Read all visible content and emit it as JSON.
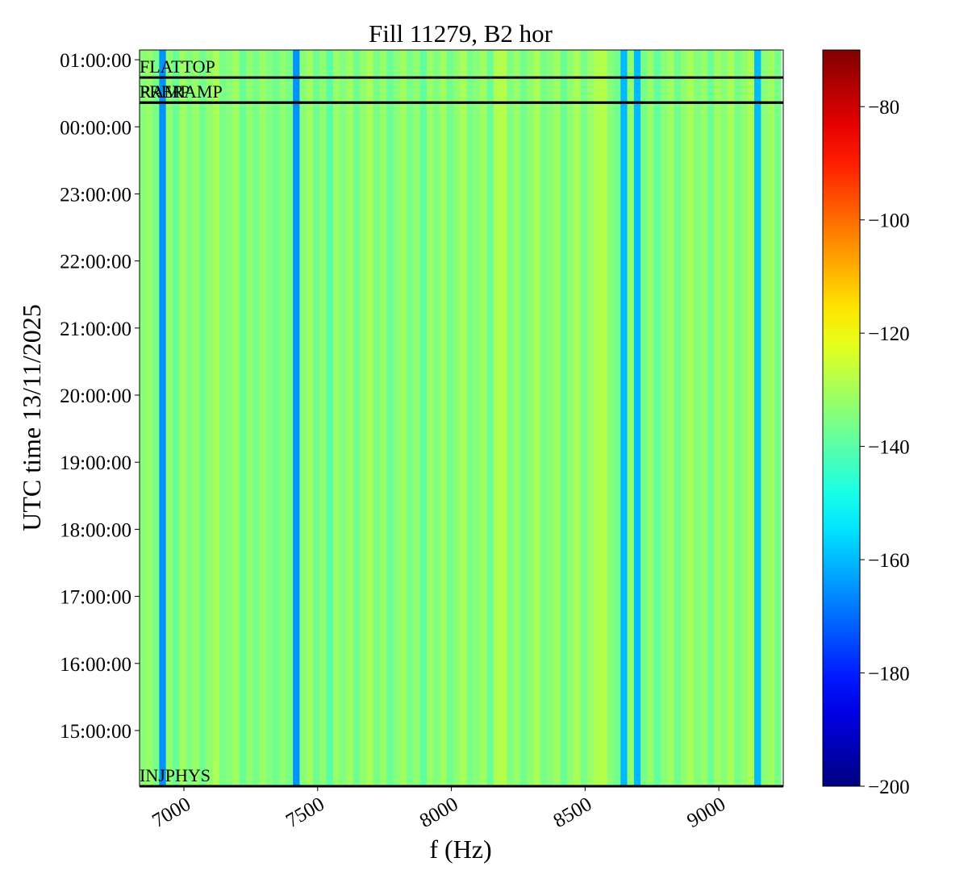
{
  "chart_data": {
    "type": "spectrogram",
    "title": "Fill 11279, B2 hor",
    "x_label": "f (Hz)",
    "y_label": "UTC time 13/11/2025",
    "xlim": [
      6834,
      9241
    ],
    "xticks": [
      7000,
      7500,
      8000,
      8500,
      9000
    ],
    "ylim": [
      14.17,
      25.145
    ],
    "yticks": [
      {
        "value": 15,
        "label": "15:00:00"
      },
      {
        "value": 16,
        "label": "16:00:00"
      },
      {
        "value": 17,
        "label": "17:00:00"
      },
      {
        "value": 18,
        "label": "18:00:00"
      },
      {
        "value": 19,
        "label": "19:00:00"
      },
      {
        "value": 20,
        "label": "20:00:00"
      },
      {
        "value": 21,
        "label": "21:00:00"
      },
      {
        "value": 22,
        "label": "22:00:00"
      },
      {
        "value": 23,
        "label": "23:00:00"
      },
      {
        "value": 24,
        "label": "00:00:00"
      },
      {
        "value": 25,
        "label": "01:00:00"
      }
    ],
    "x": [
      6845,
      6870,
      6895,
      6920,
      6945,
      6970,
      6995,
      7020,
      7045,
      7070,
      7095,
      7120,
      7145,
      7170,
      7195,
      7220,
      7245,
      7270,
      7295,
      7320,
      7345,
      7370,
      7395,
      7420,
      7445,
      7470,
      7495,
      7520,
      7545,
      7570,
      7595,
      7620,
      7645,
      7670,
      7695,
      7720,
      7745,
      7770,
      7795,
      7820,
      7845,
      7870,
      7895,
      7920,
      7945,
      7970,
      7995,
      8020,
      8045,
      8070,
      8095,
      8120,
      8145,
      8170,
      8195,
      8220,
      8245,
      8270,
      8295,
      8320,
      8345,
      8370,
      8395,
      8420,
      8445,
      8470,
      8495,
      8520,
      8545,
      8570,
      8595,
      8620,
      8645,
      8670,
      8695,
      8720,
      8745,
      8770,
      8795,
      8820,
      8845,
      8870,
      8895,
      8920,
      8945,
      8970,
      8995,
      9020,
      9045,
      9070,
      9095,
      9120,
      9145,
      9170,
      9195,
      9220
    ],
    "values": [
      -134,
      -132,
      -136,
      -165,
      -133,
      -138,
      -131,
      -135,
      -132,
      -137,
      -133,
      -130,
      -136,
      -134,
      -131,
      -138,
      -133,
      -136,
      -132,
      -135,
      -137,
      -133,
      -136,
      -165,
      -134,
      -131,
      -137,
      -133,
      -140,
      -132,
      -135,
      -131,
      -137,
      -133,
      -130,
      -136,
      -132,
      -138,
      -134,
      -131,
      -136,
      -133,
      -139,
      -132,
      -135,
      -131,
      -137,
      -133,
      -130,
      -136,
      -134,
      -131,
      -138,
      -129,
      -128,
      -135,
      -132,
      -137,
      -133,
      -130,
      -136,
      -134,
      -131,
      -138,
      -133,
      -130,
      -136,
      -132,
      -129,
      -128,
      -134,
      -137,
      -160,
      -133,
      -160,
      -136,
      -132,
      -139,
      -134,
      -131,
      -137,
      -133,
      -130,
      -135,
      -132,
      -138,
      -131,
      -134,
      -130,
      -136,
      -133,
      -129,
      -160,
      -134,
      -131,
      -136
    ],
    "colormap": "jet",
    "clim": [
      -200,
      -70
    ],
    "cticks": [
      {
        "value": -200,
        "label": "−200"
      },
      {
        "value": -180,
        "label": "−180"
      },
      {
        "value": -160,
        "label": "−160"
      },
      {
        "value": -140,
        "label": "−140"
      },
      {
        "value": -120,
        "label": "−120"
      },
      {
        "value": -100,
        "label": "−100"
      },
      {
        "value": -80,
        "label": "−80"
      }
    ],
    "annotations": [
      {
        "label": "INJPHYS",
        "time": 14.17
      },
      {
        "label": "PRERAMP",
        "time": 24.361
      },
      {
        "label": "RAMP",
        "time": 24.361
      },
      {
        "label": "FLATTOP",
        "time": 24.735
      }
    ]
  }
}
